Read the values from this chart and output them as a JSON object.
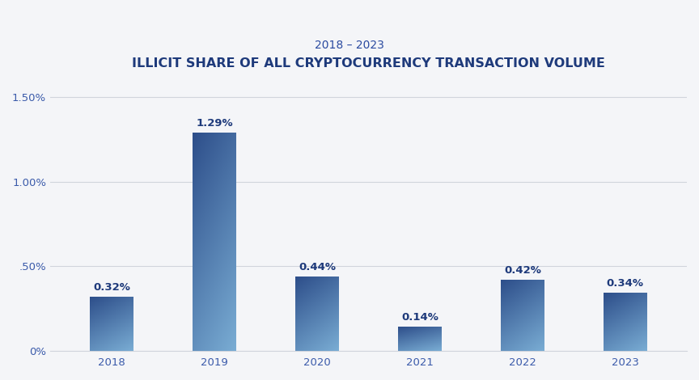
{
  "title": "ILLICIT SHARE OF ALL CRYPTOCURRENCY TRANSACTION VOLUME",
  "subtitle": "2018 – 2023",
  "categories": [
    "2018",
    "2019",
    "2020",
    "2021",
    "2022",
    "2023"
  ],
  "values": [
    0.32,
    1.29,
    0.44,
    0.14,
    0.42,
    0.34
  ],
  "labels": [
    "0.32%",
    "1.29%",
    "0.44%",
    "0.14%",
    "0.42%",
    "0.34%"
  ],
  "bar_color_top_left": "#2d4e8a",
  "bar_color_bottom_right": "#7aadd4",
  "background_color": "#f4f5f8",
  "title_color": "#1e3a7b",
  "subtitle_color": "#2a4aa0",
  "axis_color": "#3a5aaa",
  "label_color": "#1e3a7b",
  "grid_color": "#d0d4dc",
  "ylim": [
    0,
    1.65
  ],
  "yticks": [
    0.0,
    0.5,
    1.0,
    1.5
  ],
  "ytick_labels": [
    "0%",
    ".50%",
    "1.00%",
    "1.50%"
  ],
  "title_fontsize": 11.5,
  "subtitle_fontsize": 10,
  "label_fontsize": 9.5,
  "tick_fontsize": 9.5,
  "bar_width": 0.42
}
